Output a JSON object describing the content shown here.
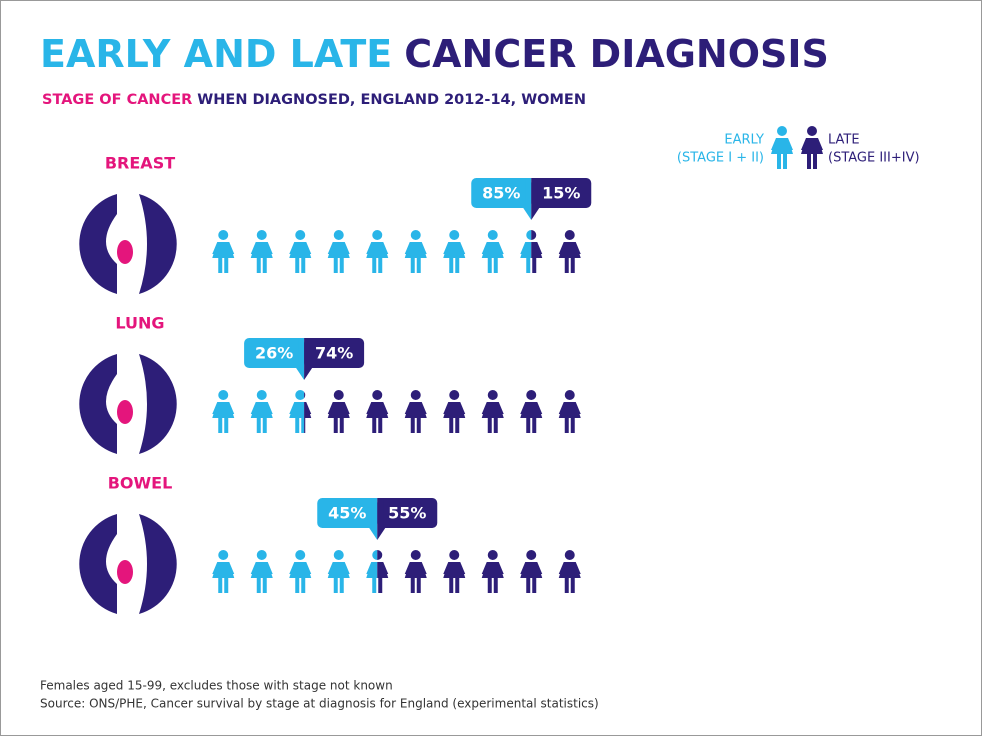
{
  "chart_data": {
    "type": "pictogram",
    "title": [
      "EARLY AND LATE",
      "CANCER DIAGNOSIS"
    ],
    "subtitle": [
      "STAGE OF CANCER",
      "WHEN DIAGNOSED, ENGLAND 2012-14, WOMEN"
    ],
    "accent_color": "#e4157c",
    "categories": [
      "BREAST",
      "LUNG",
      "BOWEL"
    ],
    "series": [
      {
        "name": "EARLY",
        "description": "(STAGE I + II)",
        "color": "#29b5e8",
        "values": [
          85,
          26,
          45
        ],
        "value_labels": [
          "85%",
          "26%",
          "45%"
        ]
      },
      {
        "name": "LATE",
        "description": "(STAGE III+IV)",
        "color": "#2d1e78",
        "values": [
          15,
          74,
          55
        ],
        "value_labels": [
          "15%",
          "74%",
          "55%"
        ]
      }
    ],
    "notes": [
      "Females aged 15-99, excludes those with stage not known",
      "Source: ONS/PHE, Cancer survival by stage at diagnosis for England (experimental statistics)"
    ]
  }
}
